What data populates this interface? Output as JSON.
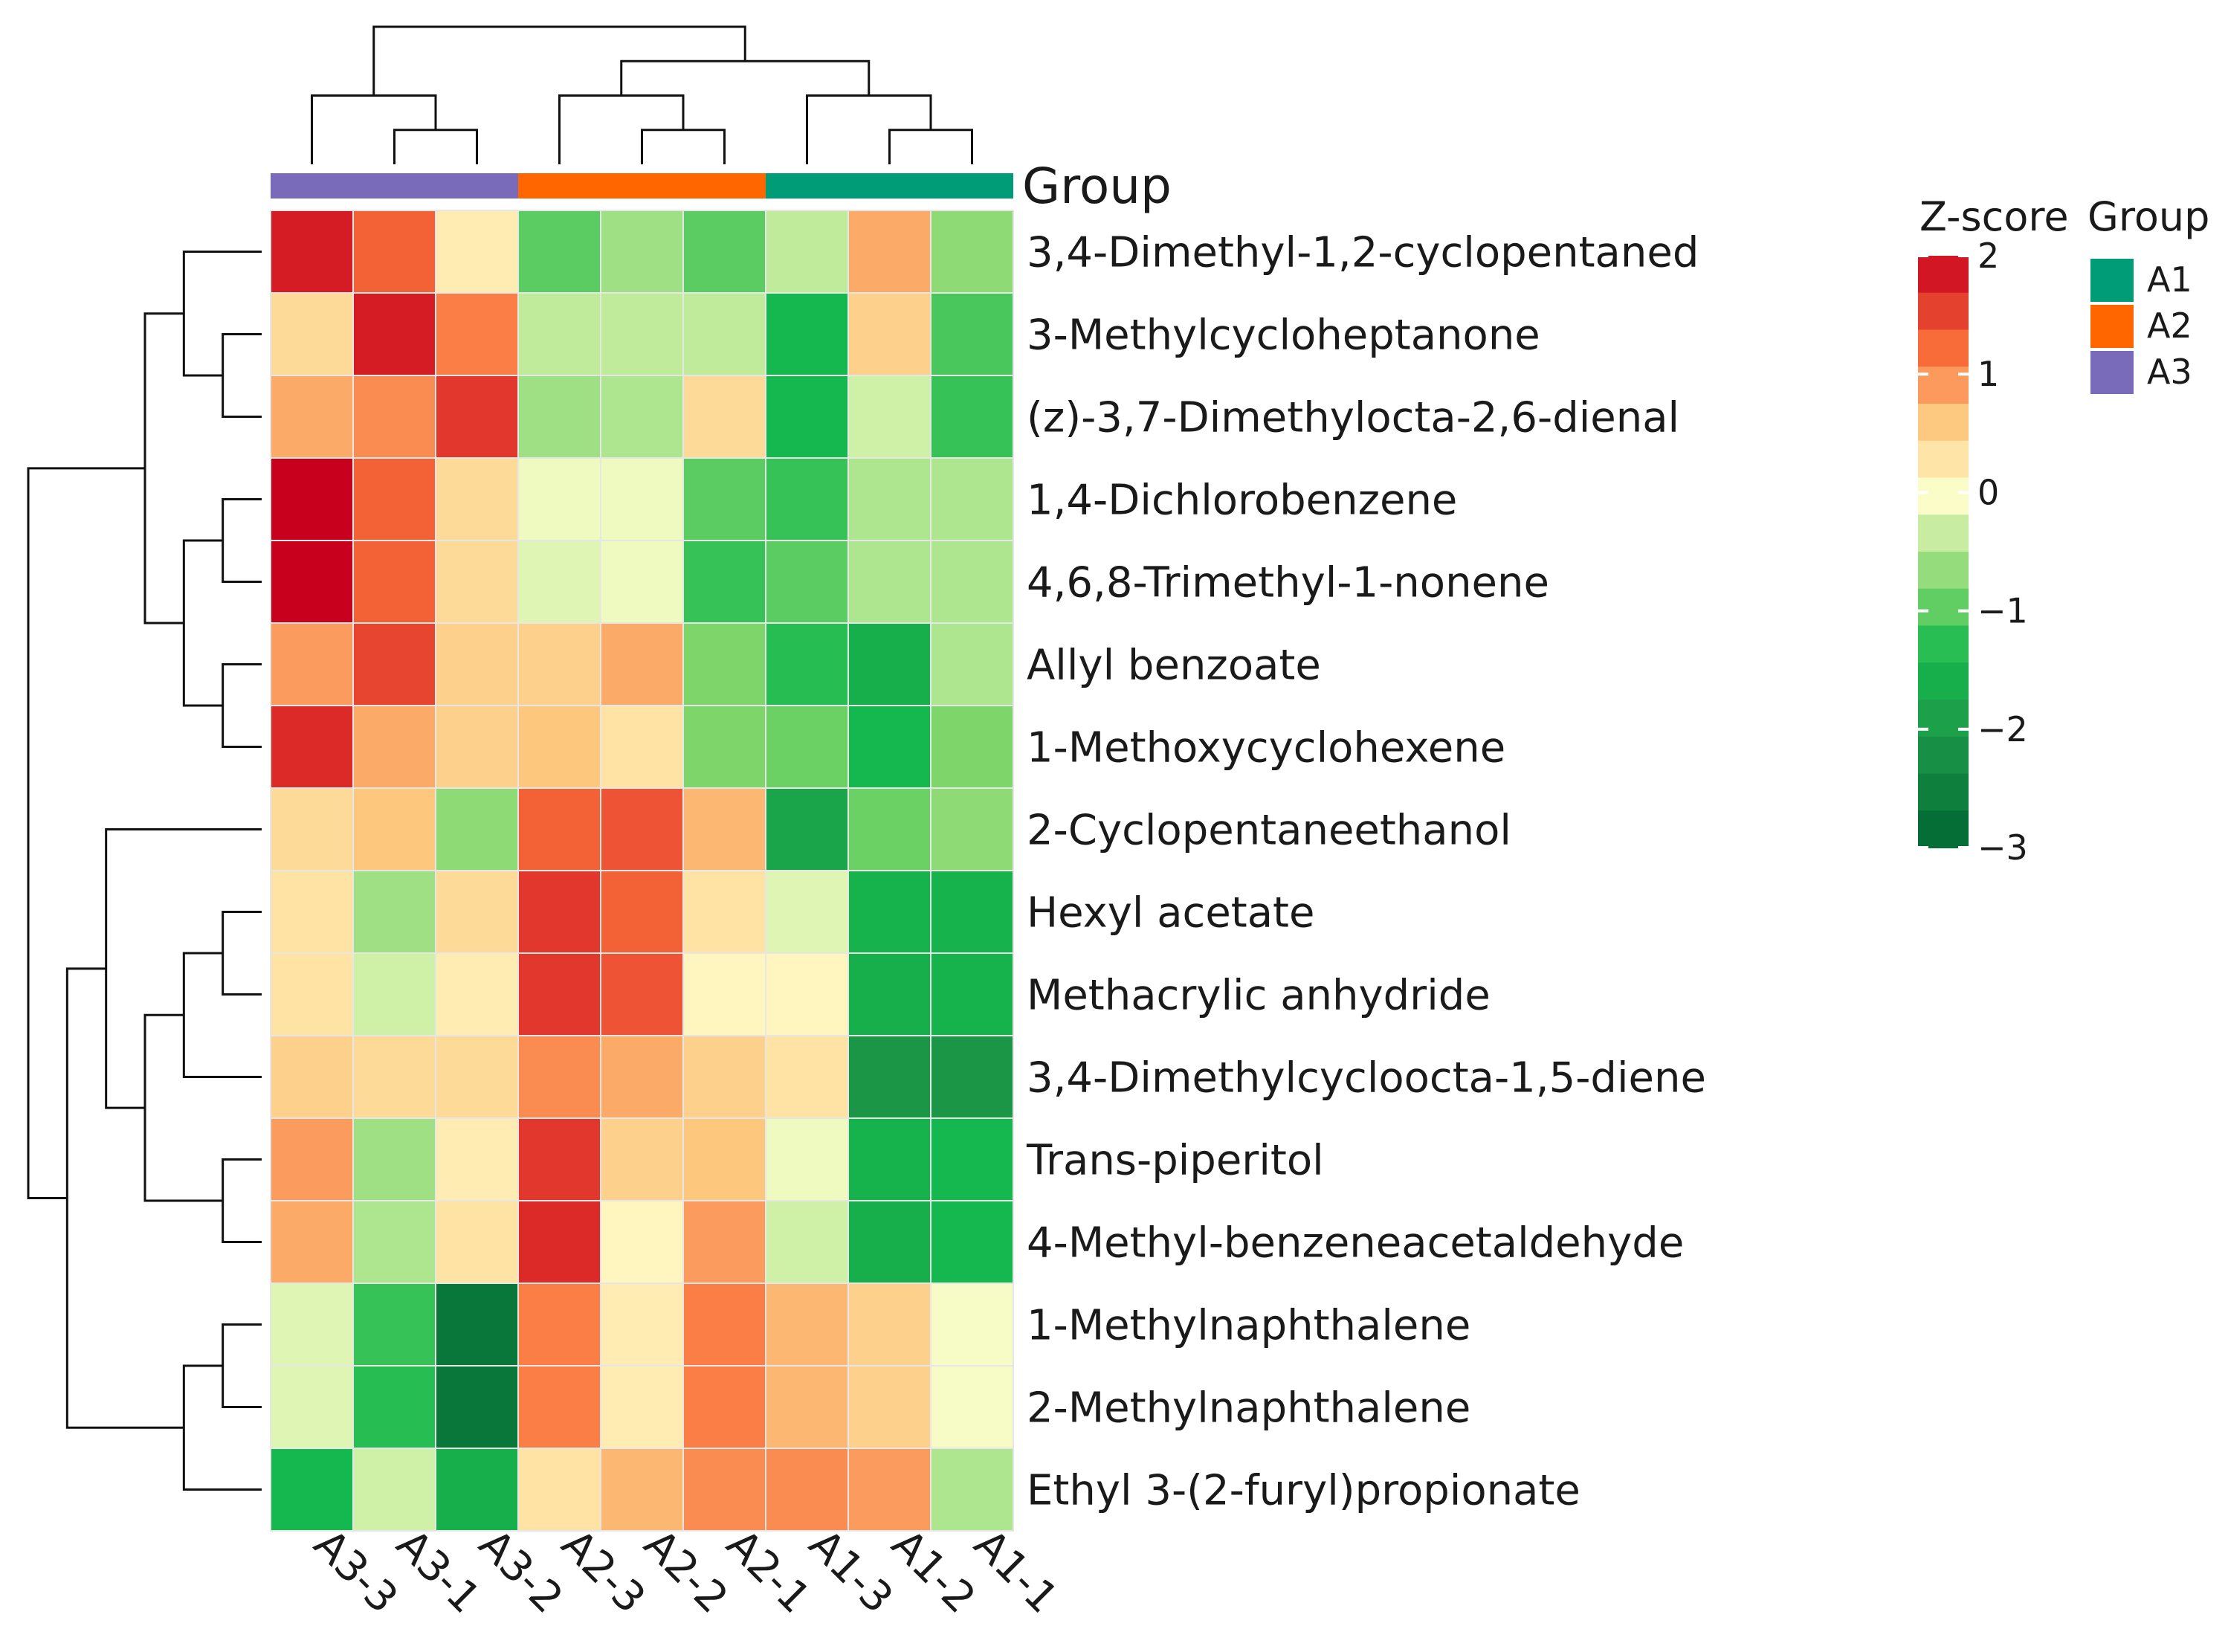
{
  "chart_data": {
    "type": "heatmap",
    "title": "",
    "columns": [
      "A3-3",
      "A3-1",
      "A3-2",
      "A2-3",
      "A2-2",
      "A2-1",
      "A1-3",
      "A1-2",
      "A1-1"
    ],
    "column_groups": [
      "A3",
      "A3",
      "A3",
      "A2",
      "A2",
      "A2",
      "A1",
      "A1",
      "A1"
    ],
    "rows": [
      "3,4-Dimethyl-1,2-cyclopentaned",
      "3-Methylcycloheptanone",
      "(z)-3,7-Dimethylocta-2,6-dienal",
      "1,4-Dichlorobenzene",
      "4,6,8-Trimethyl-1-nonene",
      "Allyl benzoate",
      "1-Methoxycyclohexene",
      "2-Cyclopentaneethanol",
      "Hexyl acetate",
      "Methacrylic anhydride",
      "3,4-Dimethylcycloocta-1,5-diene",
      "Trans-piperitol",
      "4-Methyl-benzeneacetaldehyde",
      "1-Methylnaphthalene",
      "2-Methylnaphthalene",
      "Ethyl 3-(2-furyl)propionate"
    ],
    "values": [
      [
        1.8,
        1.3,
        0.2,
        -1.0,
        -0.6,
        -1.0,
        -0.4,
        0.8,
        -0.7
      ],
      [
        0.4,
        1.8,
        1.1,
        -0.4,
        -0.4,
        -0.4,
        -1.4,
        0.5,
        -1.1
      ],
      [
        0.8,
        1.0,
        1.6,
        -0.6,
        -0.5,
        0.4,
        -1.4,
        -0.3,
        -1.2
      ],
      [
        2.0,
        1.3,
        0.4,
        -0.1,
        -0.1,
        -1.0,
        -1.2,
        -0.5,
        -0.5
      ],
      [
        2.0,
        1.3,
        0.4,
        -0.2,
        -0.1,
        -1.2,
        -1.0,
        -0.5,
        -0.5
      ],
      [
        0.9,
        1.5,
        0.5,
        0.5,
        0.8,
        -0.8,
        -1.3,
        -1.6,
        -0.5
      ],
      [
        1.7,
        0.8,
        0.5,
        0.6,
        0.3,
        -0.8,
        -0.9,
        -1.4,
        -0.8
      ],
      [
        0.4,
        0.6,
        -0.7,
        1.3,
        1.4,
        0.7,
        -1.8,
        -0.9,
        -0.7
      ],
      [
        0.3,
        -0.6,
        0.4,
        1.6,
        1.3,
        0.3,
        -0.2,
        -1.5,
        -1.5
      ],
      [
        0.3,
        -0.3,
        0.2,
        1.6,
        1.4,
        0.1,
        0.1,
        -1.6,
        -1.5
      ],
      [
        0.5,
        0.4,
        0.4,
        1.0,
        0.8,
        0.5,
        0.3,
        -2.1,
        -2.1
      ],
      [
        0.9,
        -0.6,
        0.2,
        1.6,
        0.5,
        0.6,
        -0.1,
        -1.5,
        -1.4
      ],
      [
        0.8,
        -0.5,
        0.3,
        1.7,
        0.1,
        0.9,
        -0.3,
        -1.6,
        -1.4
      ],
      [
        -0.2,
        -1.2,
        -2.7,
        1.1,
        0.2,
        1.1,
        0.7,
        0.5,
        -0.05
      ],
      [
        -0.2,
        -1.3,
        -2.7,
        1.1,
        0.2,
        1.1,
        0.7,
        0.5,
        -0.05
      ],
      [
        -1.4,
        -0.3,
        -1.6,
        0.3,
        0.7,
        1.0,
        1.0,
        0.9,
        -0.5
      ]
    ],
    "color_scale": {
      "stops": [
        {
          "value": -3,
          "color": "#006633"
        },
        {
          "value": -2,
          "color": "#1e9b49"
        },
        {
          "value": -1.4,
          "color": "#14b84e"
        },
        {
          "value": -0.8,
          "color": "#7ed66a"
        },
        {
          "value": 0,
          "color": "#ffffcc"
        },
        {
          "value": 0.6,
          "color": "#fdc77e"
        },
        {
          "value": 1.2,
          "color": "#f96f3b"
        },
        {
          "value": 2,
          "color": "#c9001d"
        }
      ]
    },
    "group_colors": {
      "A1": "#009b77",
      "A2": "#ff6600",
      "A3": "#7a6bba"
    },
    "group_annotation_label": "Group",
    "legend": {
      "zscore_title": "Z-score",
      "group_title": "Group",
      "ticks": [
        2,
        1,
        0,
        -1,
        -2,
        -3
      ],
      "tick_labels": [
        "2",
        "1",
        "0",
        "−1",
        "−2",
        "−3"
      ],
      "groups": [
        "A1",
        "A2",
        "A3"
      ]
    },
    "row_dendrogram": [
      [
        3,
        4
      ],
      [
        5,
        6
      ],
      [
        1,
        2
      ],
      [
        16,
        17
      ],
      [
        0,
        18
      ],
      [
        19,
        20
      ],
      [
        8,
        9
      ],
      [
        22,
        10
      ],
      [
        11,
        12
      ],
      [
        23,
        24
      ],
      [
        7,
        25
      ],
      [
        13,
        14
      ],
      [
        27,
        15
      ],
      [
        26,
        28
      ],
      [
        21,
        29
      ]
    ],
    "column_dendrogram": [
      [
        7,
        8
      ],
      [
        1,
        2
      ],
      [
        4,
        5
      ],
      [
        3,
        11
      ],
      [
        0,
        10
      ],
      [
        6,
        9
      ],
      [
        12,
        14
      ],
      [
        13,
        15
      ]
    ]
  }
}
